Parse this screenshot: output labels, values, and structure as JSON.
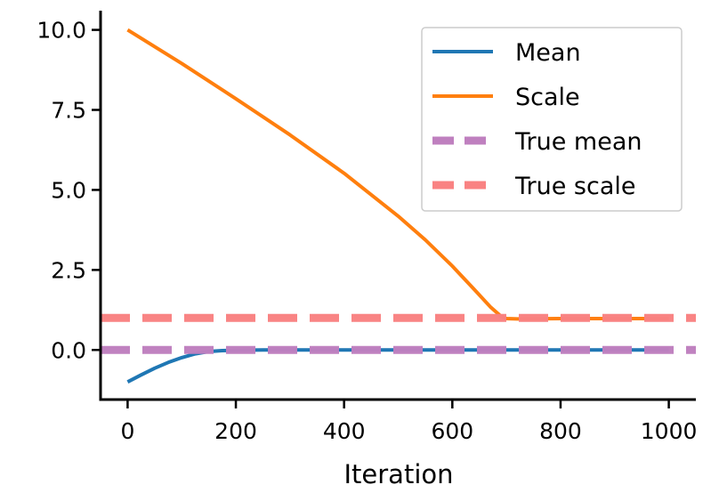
{
  "chart_data": {
    "type": "line",
    "title": "",
    "xlabel": "Iteration",
    "ylabel": "",
    "xlim": [
      -50,
      1050
    ],
    "ylim": [
      -1.55,
      10.6
    ],
    "x_ticks": [
      0,
      200,
      400,
      600,
      800,
      1000
    ],
    "x_tick_labels": [
      "0",
      "200",
      "400",
      "600",
      "800",
      "1000"
    ],
    "y_ticks": [
      0,
      2.5,
      5,
      7.5,
      10
    ],
    "y_tick_labels": [
      "0.0",
      "2.5",
      "5.0",
      "7.5",
      "10.0"
    ],
    "grid": false,
    "legend": "top-right",
    "series": [
      {
        "name": "Mean",
        "style": "solid",
        "color": "#1f77b4",
        "x": [
          0,
          25,
          50,
          75,
          100,
          125,
          150,
          175,
          200,
          250,
          300,
          400,
          500,
          600,
          700,
          800,
          900,
          1000
        ],
        "y": [
          -1.0,
          -0.78,
          -0.57,
          -0.39,
          -0.24,
          -0.12,
          -0.05,
          -0.02,
          -0.01,
          0.0,
          0.0,
          0.0,
          0.0,
          0.0,
          0.0,
          0.0,
          0.0,
          0.0
        ]
      },
      {
        "name": "Scale",
        "style": "solid",
        "color": "#ff7f0e",
        "x": [
          0,
          100,
          200,
          300,
          400,
          500,
          550,
          600,
          640,
          670,
          690,
          700,
          720,
          800,
          900,
          1000
        ],
        "y": [
          10.0,
          8.95,
          7.85,
          6.72,
          5.52,
          4.18,
          3.44,
          2.62,
          1.9,
          1.35,
          1.05,
          0.98,
          0.97,
          0.98,
          0.98,
          0.98
        ]
      },
      {
        "name": "True mean",
        "style": "dashed",
        "color": "#bf80bf",
        "x": [
          -50,
          1050
        ],
        "y": [
          0,
          0
        ]
      },
      {
        "name": "True scale",
        "style": "dashed",
        "color": "#f98282",
        "x": [
          -50,
          1050
        ],
        "y": [
          1,
          1
        ]
      }
    ]
  }
}
